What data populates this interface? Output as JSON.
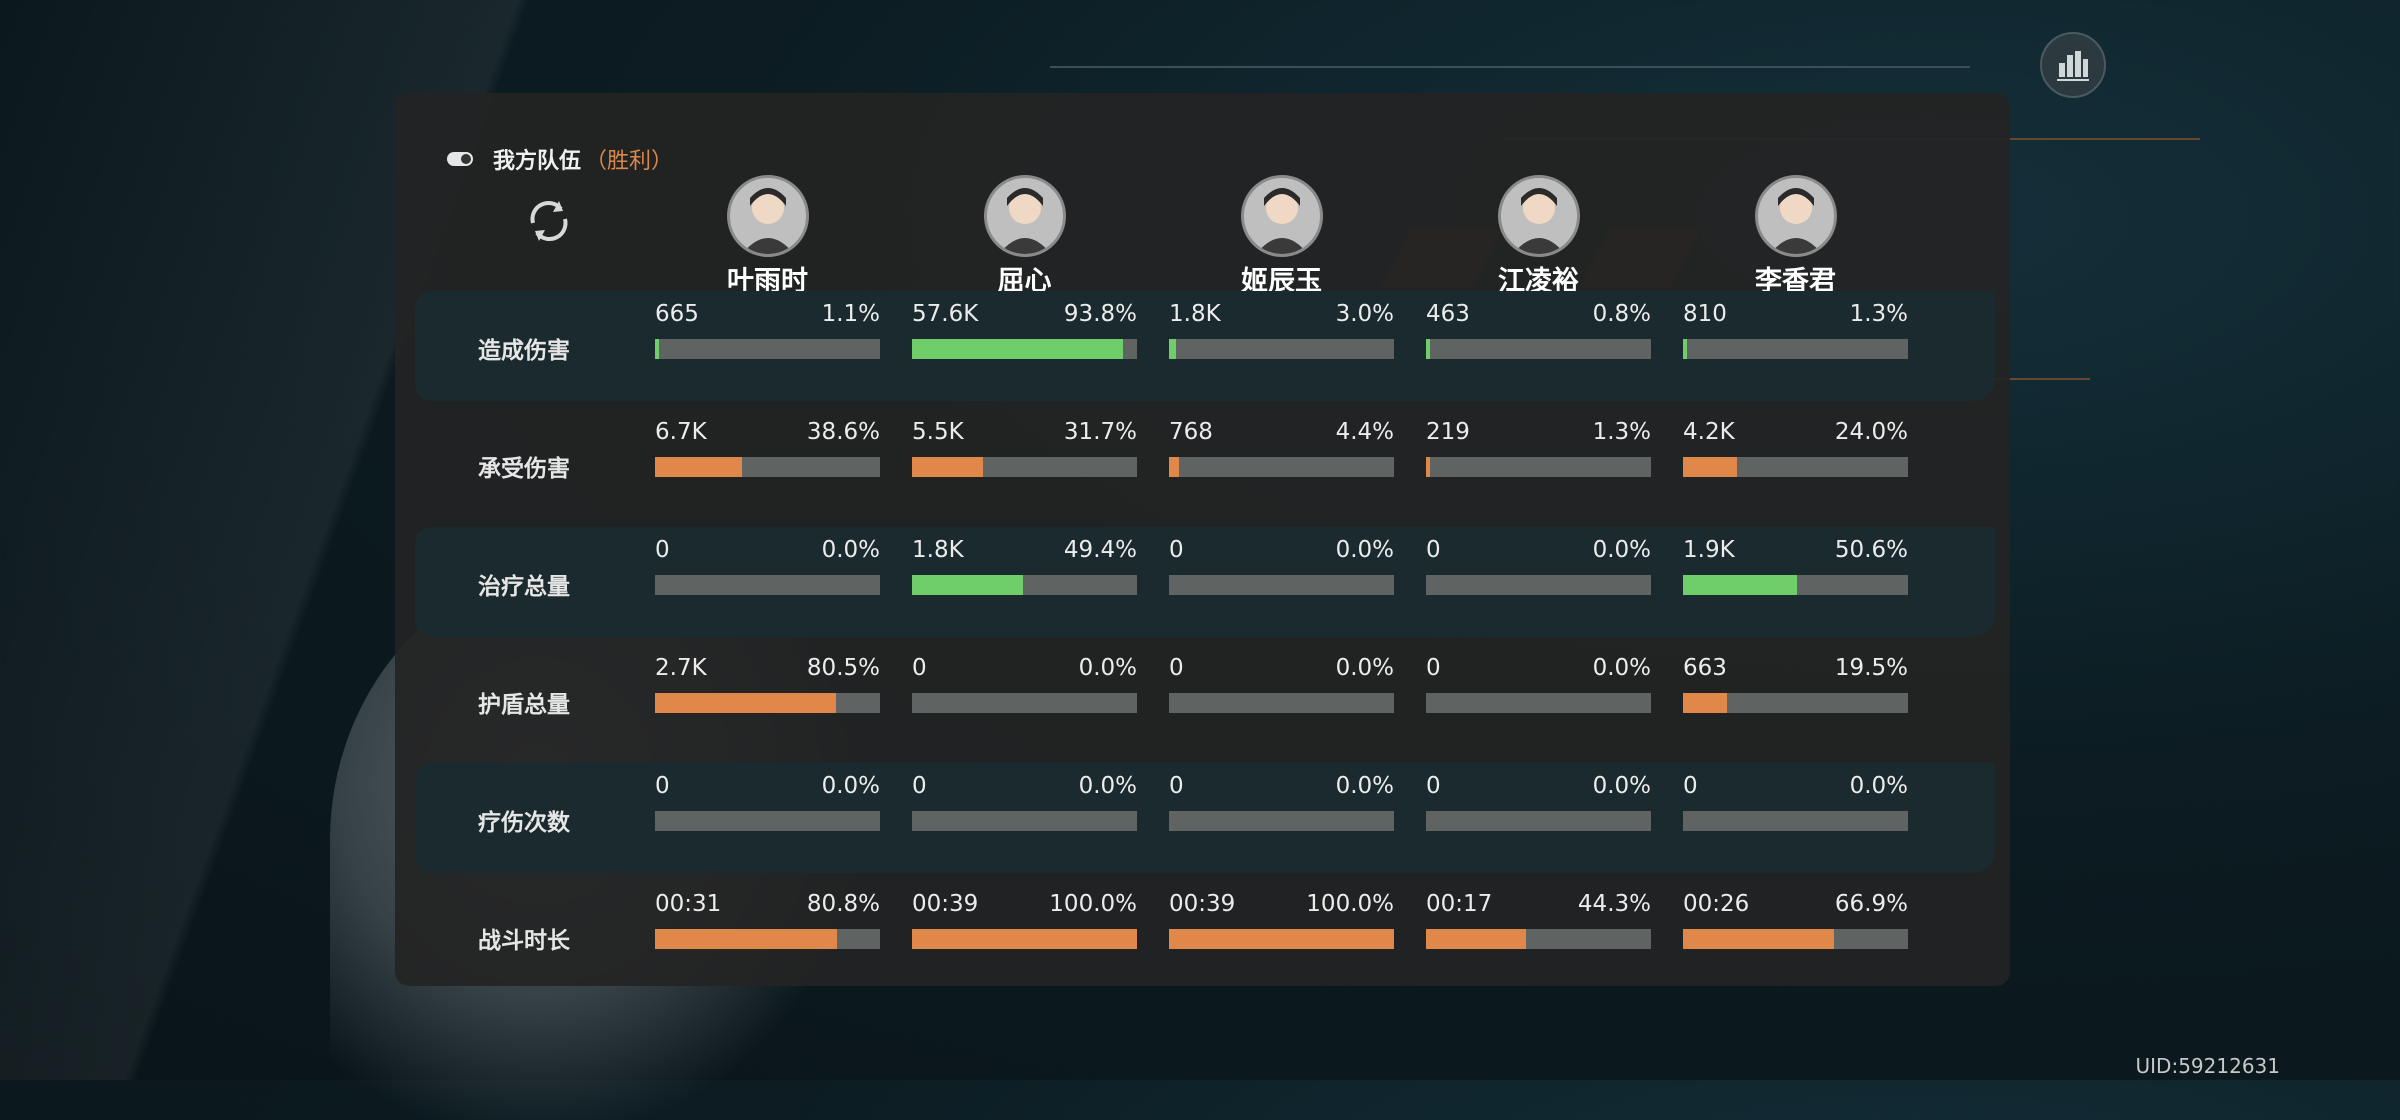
{
  "team": {
    "label": "我方队伍",
    "result": "（胜利）"
  },
  "uid": "UID:59212631",
  "colors": {
    "orange": "#e0884a",
    "green": "#6fcd6a",
    "track": "#5f6362",
    "result": "#d9874a"
  },
  "icons": {
    "toggle": "toggle-icon",
    "refresh": "refresh-icon",
    "stats": "bar-chart-icon"
  },
  "heroes": [
    {
      "name": "叶雨时"
    },
    {
      "name": "屈心"
    },
    {
      "name": "姬辰玉"
    },
    {
      "name": "江凌裕"
    },
    {
      "name": "李香君"
    }
  ],
  "rows": [
    {
      "label": "造成伤害",
      "shaded": true,
      "color": "green",
      "cells": [
        {
          "value": "665",
          "percent": "1.1%",
          "fill": 1.1
        },
        {
          "value": "57.6K",
          "percent": "93.8%",
          "fill": 93.8
        },
        {
          "value": "1.8K",
          "percent": "3.0%",
          "fill": 3.0
        },
        {
          "value": "463",
          "percent": "0.8%",
          "fill": 0.8
        },
        {
          "value": "810",
          "percent": "1.3%",
          "fill": 1.3
        }
      ]
    },
    {
      "label": "承受伤害",
      "shaded": false,
      "color": "orange",
      "cells": [
        {
          "value": "6.7K",
          "percent": "38.6%",
          "fill": 38.6
        },
        {
          "value": "5.5K",
          "percent": "31.7%",
          "fill": 31.7
        },
        {
          "value": "768",
          "percent": "4.4%",
          "fill": 4.4
        },
        {
          "value": "219",
          "percent": "1.3%",
          "fill": 1.3
        },
        {
          "value": "4.2K",
          "percent": "24.0%",
          "fill": 24.0
        }
      ]
    },
    {
      "label": "治疗总量",
      "shaded": true,
      "color": "green",
      "cells": [
        {
          "value": "0",
          "percent": "0.0%",
          "fill": 0
        },
        {
          "value": "1.8K",
          "percent": "49.4%",
          "fill": 49.4
        },
        {
          "value": "0",
          "percent": "0.0%",
          "fill": 0
        },
        {
          "value": "0",
          "percent": "0.0%",
          "fill": 0
        },
        {
          "value": "1.9K",
          "percent": "50.6%",
          "fill": 50.6
        }
      ]
    },
    {
      "label": "护盾总量",
      "shaded": false,
      "color": "orange",
      "cells": [
        {
          "value": "2.7K",
          "percent": "80.5%",
          "fill": 80.5
        },
        {
          "value": "0",
          "percent": "0.0%",
          "fill": 0
        },
        {
          "value": "0",
          "percent": "0.0%",
          "fill": 0
        },
        {
          "value": "0",
          "percent": "0.0%",
          "fill": 0
        },
        {
          "value": "663",
          "percent": "19.5%",
          "fill": 19.5
        }
      ]
    },
    {
      "label": "疗伤次数",
      "shaded": true,
      "color": "green",
      "cells": [
        {
          "value": "0",
          "percent": "0.0%",
          "fill": 0
        },
        {
          "value": "0",
          "percent": "0.0%",
          "fill": 0
        },
        {
          "value": "0",
          "percent": "0.0%",
          "fill": 0
        },
        {
          "value": "0",
          "percent": "0.0%",
          "fill": 0
        },
        {
          "value": "0",
          "percent": "0.0%",
          "fill": 0
        }
      ]
    },
    {
      "label": "战斗时长",
      "shaded": false,
      "color": "orange",
      "cells": [
        {
          "value": "00:31",
          "percent": "80.8%",
          "fill": 80.8
        },
        {
          "value": "00:39",
          "percent": "100.0%",
          "fill": 100.0
        },
        {
          "value": "00:39",
          "percent": "100.0%",
          "fill": 100.0
        },
        {
          "value": "00:17",
          "percent": "44.3%",
          "fill": 44.3
        },
        {
          "value": "00:26",
          "percent": "66.9%",
          "fill": 66.9
        }
      ]
    }
  ]
}
